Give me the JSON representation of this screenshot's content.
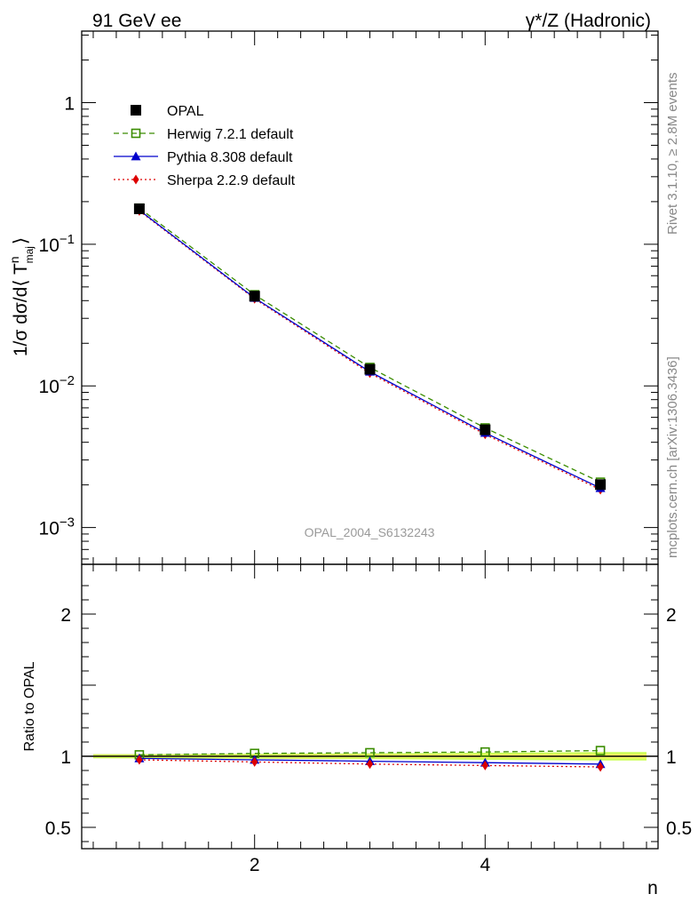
{
  "header": {
    "left": "91 GeV ee",
    "right": "γ*/Z (Hadronic)"
  },
  "side_labels": {
    "rivet": "Rivet 3.1.10, ≥ 2.8M events",
    "mcplots": "mcplots.cern.ch [arXiv:1306.3436]"
  },
  "watermark": "OPAL_2004_S6132243",
  "chart_data": [
    {
      "panel": "main",
      "type": "line",
      "xlabel": "n",
      "ylabel": "1/σ dσ/d⟨ T^n_maj ⟩",
      "yscale": "log",
      "xlim": [
        0.5,
        5.5
      ],
      "ylim": [
        0.00055,
        3.2
      ],
      "yticks": [
        {
          "value": 1,
          "label": "1"
        },
        {
          "value": 0.1,
          "label": "10",
          "exp": "−1"
        },
        {
          "value": 0.01,
          "label": "10",
          "exp": "−2"
        },
        {
          "value": 0.001,
          "label": "10",
          "exp": "−3"
        }
      ],
      "x": [
        1,
        2,
        3,
        4,
        5
      ],
      "series": [
        {
          "name": "OPAL",
          "role": "data",
          "color": "#000000",
          "marker": "square-filled",
          "values": [
            0.178,
            0.043,
            0.0131,
            0.0049,
            0.00201
          ]
        },
        {
          "name": "Herwig 7.2.1 default",
          "color": "#3a8c00",
          "marker": "square-open",
          "dash": "6,4",
          "values": [
            0.18,
            0.044,
            0.0135,
            0.00505,
            0.00209
          ]
        },
        {
          "name": "Pythia 8.308 default",
          "color": "#0000cc",
          "marker": "triangle",
          "dash": "",
          "values": [
            0.174,
            0.0418,
            0.0126,
            0.00466,
            0.0019
          ]
        },
        {
          "name": "Sherpa 2.2.9 default",
          "color": "#dd0000",
          "marker": "diamond",
          "dash": "2,3",
          "values": [
            0.172,
            0.0412,
            0.0123,
            0.00455,
            0.00185
          ]
        }
      ],
      "legend": "top-left"
    },
    {
      "panel": "ratio",
      "type": "line",
      "xlabel": "n",
      "ylabel": "Ratio to OPAL",
      "xlim": [
        0.5,
        5.5
      ],
      "ylim": [
        0.35,
        2.35
      ],
      "xticks": [
        {
          "value": 2,
          "label": "2"
        },
        {
          "value": 4,
          "label": "4"
        }
      ],
      "yticks": [
        {
          "value": 0.5,
          "label": "0.5"
        },
        {
          "value": 1,
          "label": "1"
        },
        {
          "value": 2,
          "label": "2"
        }
      ],
      "x": [
        1,
        2,
        3,
        4,
        5
      ],
      "band": {
        "color": "#ccff55",
        "inner_color": "#ffff66",
        "half_widths": [
          0.015,
          0.017,
          0.02,
          0.025,
          0.03
        ],
        "inner_half_widths": [
          0.007,
          0.008,
          0.01,
          0.012,
          0.015
        ]
      },
      "series": [
        {
          "name": "Herwig 7.2.1 default",
          "color": "#3a8c00",
          "marker": "square-open",
          "dash": "6,4",
          "values": [
            1.01,
            1.02,
            1.025,
            1.03,
            1.04
          ]
        },
        {
          "name": "Pythia 8.308 default",
          "color": "#0000cc",
          "marker": "triangle",
          "dash": "",
          "values": [
            0.985,
            0.975,
            0.965,
            0.955,
            0.945
          ]
        },
        {
          "name": "Sherpa 2.2.9 default",
          "color": "#dd0000",
          "marker": "diamond",
          "dash": "2,3",
          "values": [
            0.975,
            0.96,
            0.945,
            0.935,
            0.925
          ]
        }
      ]
    }
  ]
}
